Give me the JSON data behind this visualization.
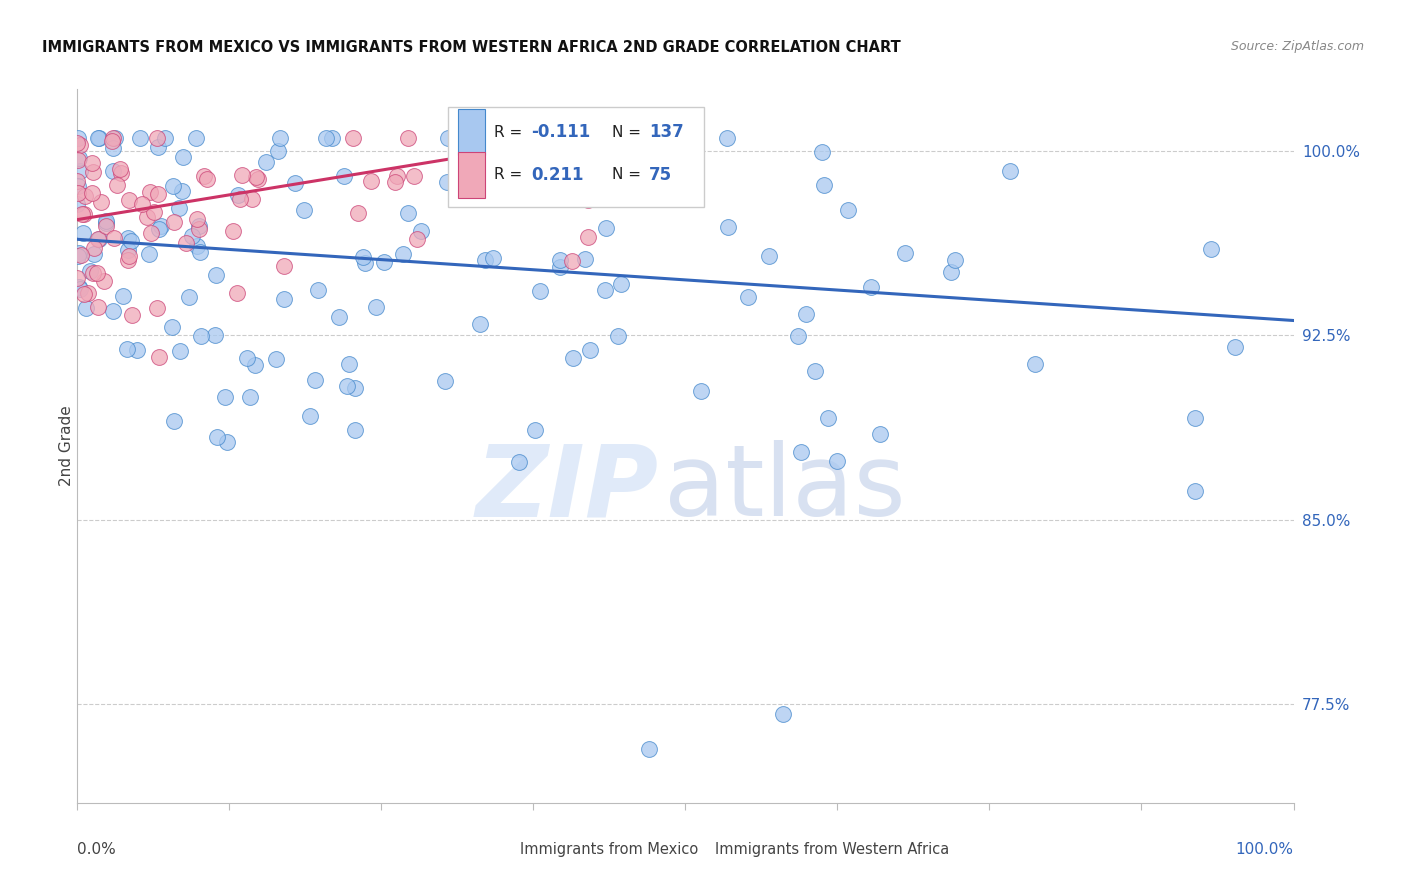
{
  "title": "IMMIGRANTS FROM MEXICO VS IMMIGRANTS FROM WESTERN AFRICA 2ND GRADE CORRELATION CHART",
  "source": "Source: ZipAtlas.com",
  "ylabel": "2nd Grade",
  "ytick_labels": [
    "77.5%",
    "85.0%",
    "92.5%",
    "100.0%"
  ],
  "ytick_values": [
    0.775,
    0.85,
    0.925,
    1.0
  ],
  "xmin": 0.0,
  "xmax": 1.0,
  "ymin": 0.735,
  "ymax": 1.025,
  "legend_label_blue": "Immigrants from Mexico",
  "legend_label_pink": "Immigrants from Western Africa",
  "blue_color": "#a8c8f0",
  "pink_color": "#f0a8b8",
  "blue_edge_color": "#4488cc",
  "pink_edge_color": "#cc4477",
  "blue_line_color": "#3366bb",
  "pink_line_color": "#cc3366",
  "blue_trend_y_start": 0.964,
  "blue_trend_y_end": 0.931,
  "pink_trend_x_end": 0.41,
  "pink_trend_y_start": 0.972,
  "pink_trend_y_end": 1.005,
  "grid_color": "#cccccc",
  "background_color": "#ffffff",
  "watermark_zip_color": "#ccddf5",
  "watermark_atlas_color": "#aabde0"
}
